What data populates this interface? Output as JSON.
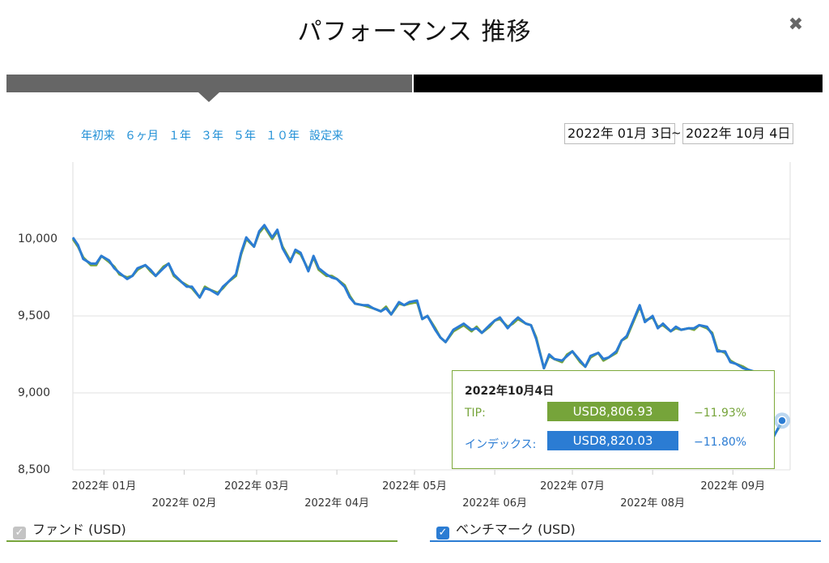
{
  "header": {
    "title": "パフォーマンス 推移",
    "close_symbol": "✖"
  },
  "periods": [
    "年初来",
    "６ヶ月",
    "１年",
    "３年",
    "５年",
    "１０年",
    "設定来"
  ],
  "date_range": {
    "from": "2022年 01月 3日",
    "separator": "~",
    "to": "2022年 10月 4日"
  },
  "tooltip": {
    "date": "2022年10月4日",
    "fund_label": "TIP:",
    "fund_value": "USD8,806.93",
    "fund_pct": "−11.93%",
    "index_label": "インデックス:",
    "index_value": "USD8,820.03",
    "index_pct": "−11.80%"
  },
  "legend": {
    "fund": "ファンド (USD)",
    "benchmark": "ベンチマーク (USD)"
  },
  "colors": {
    "fund": "#76a43a",
    "benchmark": "#2b7cd3",
    "link": "#1f8fd6"
  },
  "chart_data": {
    "type": "line",
    "ylim": [
      8500,
      10500
    ],
    "y_ticks": [
      8500,
      9000,
      9500,
      10000
    ],
    "y_tick_labels": [
      "8,500",
      "9,000",
      "9,500",
      "10,000"
    ],
    "x_tick_labels": [
      {
        "label": "2022年 01月",
        "date": "2022-01-15"
      },
      {
        "label": "2022年 02月",
        "date": "2022-02-15"
      },
      {
        "label": "2022年 03月",
        "date": "2022-03-15"
      },
      {
        "label": "2022年 04月",
        "date": "2022-04-15"
      },
      {
        "label": "2022年 05月",
        "date": "2022-05-15"
      },
      {
        "label": "2022年 06月",
        "date": "2022-06-15"
      },
      {
        "label": "2022年 07月",
        "date": "2022-07-15"
      },
      {
        "label": "2022年 08月",
        "date": "2022-08-15"
      },
      {
        "label": "2022年 09月",
        "date": "2022-09-15"
      }
    ],
    "series": [
      {
        "name": "ファンド (USD)",
        "points": [
          [
            "2022-01-03",
            10000
          ],
          [
            "2022-01-05",
            9950
          ],
          [
            "2022-01-07",
            9880
          ],
          [
            "2022-01-10",
            9830
          ],
          [
            "2022-01-12",
            9830
          ],
          [
            "2022-01-14",
            9890
          ],
          [
            "2022-01-17",
            9850
          ],
          [
            "2022-01-19",
            9820
          ],
          [
            "2022-01-21",
            9770
          ],
          [
            "2022-01-24",
            9750
          ],
          [
            "2022-01-26",
            9760
          ],
          [
            "2022-01-28",
            9800
          ],
          [
            "2022-01-31",
            9830
          ],
          [
            "2022-02-02",
            9790
          ],
          [
            "2022-02-04",
            9760
          ],
          [
            "2022-02-07",
            9820
          ],
          [
            "2022-02-09",
            9840
          ],
          [
            "2022-02-11",
            9760
          ],
          [
            "2022-02-14",
            9720
          ],
          [
            "2022-02-16",
            9700
          ],
          [
            "2022-02-18",
            9680
          ],
          [
            "2022-02-21",
            9620
          ],
          [
            "2022-02-23",
            9690
          ],
          [
            "2022-02-25",
            9670
          ],
          [
            "2022-02-28",
            9650
          ],
          [
            "2022-03-02",
            9680
          ],
          [
            "2022-03-04",
            9720
          ],
          [
            "2022-03-07",
            9760
          ],
          [
            "2022-03-09",
            9900
          ],
          [
            "2022-03-11",
            10000
          ],
          [
            "2022-03-14",
            9950
          ],
          [
            "2022-03-16",
            10040
          ],
          [
            "2022-03-18",
            10080
          ],
          [
            "2022-03-21",
            10000
          ],
          [
            "2022-03-23",
            10050
          ],
          [
            "2022-03-25",
            9950
          ],
          [
            "2022-03-28",
            9860
          ],
          [
            "2022-03-30",
            9920
          ],
          [
            "2022-04-01",
            9900
          ],
          [
            "2022-04-04",
            9800
          ],
          [
            "2022-04-06",
            9880
          ],
          [
            "2022-04-08",
            9800
          ],
          [
            "2022-04-11",
            9760
          ],
          [
            "2022-04-13",
            9760
          ],
          [
            "2022-04-15",
            9740
          ],
          [
            "2022-04-18",
            9700
          ],
          [
            "2022-04-20",
            9630
          ],
          [
            "2022-04-22",
            9580
          ],
          [
            "2022-04-25",
            9570
          ],
          [
            "2022-04-27",
            9560
          ],
          [
            "2022-04-29",
            9550
          ],
          [
            "2022-05-02",
            9530
          ],
          [
            "2022-05-04",
            9560
          ],
          [
            "2022-05-06",
            9510
          ],
          [
            "2022-05-09",
            9580
          ],
          [
            "2022-05-11",
            9570
          ],
          [
            "2022-05-13",
            9580
          ],
          [
            "2022-05-16",
            9590
          ],
          [
            "2022-05-18",
            9480
          ],
          [
            "2022-05-20",
            9500
          ],
          [
            "2022-05-23",
            9420
          ],
          [
            "2022-05-25",
            9360
          ],
          [
            "2022-05-27",
            9330
          ],
          [
            "2022-05-30",
            9400
          ],
          [
            "2022-06-01",
            9420
          ],
          [
            "2022-06-03",
            9440
          ],
          [
            "2022-06-06",
            9400
          ],
          [
            "2022-06-08",
            9430
          ],
          [
            "2022-06-10",
            9390
          ],
          [
            "2022-06-13",
            9430
          ],
          [
            "2022-06-15",
            9470
          ],
          [
            "2022-06-17",
            9480
          ],
          [
            "2022-06-20",
            9430
          ],
          [
            "2022-06-22",
            9450
          ],
          [
            "2022-06-24",
            9480
          ],
          [
            "2022-06-27",
            9450
          ],
          [
            "2022-06-29",
            9440
          ],
          [
            "2022-07-01",
            9360
          ],
          [
            "2022-07-04",
            9160
          ],
          [
            "2022-07-06",
            9240
          ],
          [
            "2022-07-08",
            9220
          ],
          [
            "2022-07-11",
            9200
          ],
          [
            "2022-07-13",
            9250
          ],
          [
            "2022-07-15",
            9270
          ],
          [
            "2022-07-18",
            9200
          ],
          [
            "2022-07-20",
            9170
          ],
          [
            "2022-07-22",
            9230
          ],
          [
            "2022-07-25",
            9260
          ],
          [
            "2022-07-27",
            9210
          ],
          [
            "2022-07-29",
            9230
          ],
          [
            "2022-08-01",
            9260
          ],
          [
            "2022-08-03",
            9340
          ],
          [
            "2022-08-05",
            9360
          ],
          [
            "2022-08-08",
            9480
          ],
          [
            "2022-08-10",
            9560
          ],
          [
            "2022-08-12",
            9470
          ],
          [
            "2022-08-15",
            9490
          ],
          [
            "2022-08-17",
            9430
          ],
          [
            "2022-08-19",
            9440
          ],
          [
            "2022-08-22",
            9400
          ],
          [
            "2022-08-24",
            9420
          ],
          [
            "2022-08-26",
            9410
          ],
          [
            "2022-08-29",
            9420
          ],
          [
            "2022-08-31",
            9410
          ],
          [
            "2022-09-02",
            9440
          ],
          [
            "2022-09-05",
            9420
          ],
          [
            "2022-09-07",
            9390
          ],
          [
            "2022-09-09",
            9280
          ],
          [
            "2022-09-12",
            9260
          ],
          [
            "2022-09-14",
            9210
          ],
          [
            "2022-09-16",
            9190
          ],
          [
            "2022-09-19",
            9170
          ],
          [
            "2022-09-21",
            9150
          ],
          [
            "2022-09-23",
            9130
          ],
          [
            "2022-09-26",
            8760
          ],
          [
            "2022-09-28",
            8730
          ],
          [
            "2022-09-30",
            8700
          ],
          [
            "2022-10-04",
            8807
          ]
        ]
      },
      {
        "name": "ベンチマーク (USD)",
        "points": [
          [
            "2022-01-03",
            10010
          ],
          [
            "2022-01-05",
            9960
          ],
          [
            "2022-01-07",
            9870
          ],
          [
            "2022-01-10",
            9840
          ],
          [
            "2022-01-12",
            9840
          ],
          [
            "2022-01-14",
            9890
          ],
          [
            "2022-01-17",
            9860
          ],
          [
            "2022-01-19",
            9810
          ],
          [
            "2022-01-21",
            9780
          ],
          [
            "2022-01-24",
            9740
          ],
          [
            "2022-01-26",
            9760
          ],
          [
            "2022-01-28",
            9810
          ],
          [
            "2022-01-31",
            9830
          ],
          [
            "2022-02-02",
            9800
          ],
          [
            "2022-02-04",
            9760
          ],
          [
            "2022-02-07",
            9810
          ],
          [
            "2022-02-09",
            9840
          ],
          [
            "2022-02-11",
            9770
          ],
          [
            "2022-02-14",
            9720
          ],
          [
            "2022-02-16",
            9690
          ],
          [
            "2022-02-18",
            9690
          ],
          [
            "2022-02-21",
            9620
          ],
          [
            "2022-02-23",
            9680
          ],
          [
            "2022-02-25",
            9670
          ],
          [
            "2022-02-28",
            9640
          ],
          [
            "2022-03-02",
            9690
          ],
          [
            "2022-03-04",
            9720
          ],
          [
            "2022-03-07",
            9770
          ],
          [
            "2022-03-09",
            9910
          ],
          [
            "2022-03-11",
            10010
          ],
          [
            "2022-03-14",
            9950
          ],
          [
            "2022-03-16",
            10050
          ],
          [
            "2022-03-18",
            10090
          ],
          [
            "2022-03-21",
            10010
          ],
          [
            "2022-03-23",
            10060
          ],
          [
            "2022-03-25",
            9940
          ],
          [
            "2022-03-28",
            9850
          ],
          [
            "2022-03-30",
            9930
          ],
          [
            "2022-04-01",
            9910
          ],
          [
            "2022-04-04",
            9790
          ],
          [
            "2022-04-06",
            9890
          ],
          [
            "2022-04-08",
            9810
          ],
          [
            "2022-04-11",
            9770
          ],
          [
            "2022-04-13",
            9750
          ],
          [
            "2022-04-15",
            9740
          ],
          [
            "2022-04-18",
            9690
          ],
          [
            "2022-04-20",
            9620
          ],
          [
            "2022-04-22",
            9580
          ],
          [
            "2022-04-25",
            9570
          ],
          [
            "2022-04-27",
            9570
          ],
          [
            "2022-04-29",
            9550
          ],
          [
            "2022-05-02",
            9530
          ],
          [
            "2022-05-04",
            9550
          ],
          [
            "2022-05-06",
            9510
          ],
          [
            "2022-05-09",
            9590
          ],
          [
            "2022-05-11",
            9570
          ],
          [
            "2022-05-13",
            9590
          ],
          [
            "2022-05-16",
            9600
          ],
          [
            "2022-05-18",
            9480
          ],
          [
            "2022-05-20",
            9500
          ],
          [
            "2022-05-23",
            9410
          ],
          [
            "2022-05-25",
            9360
          ],
          [
            "2022-05-27",
            9330
          ],
          [
            "2022-05-30",
            9410
          ],
          [
            "2022-06-01",
            9430
          ],
          [
            "2022-06-03",
            9450
          ],
          [
            "2022-06-06",
            9410
          ],
          [
            "2022-06-08",
            9420
          ],
          [
            "2022-06-10",
            9390
          ],
          [
            "2022-06-13",
            9440
          ],
          [
            "2022-06-15",
            9470
          ],
          [
            "2022-06-17",
            9490
          ],
          [
            "2022-06-20",
            9420
          ],
          [
            "2022-06-22",
            9460
          ],
          [
            "2022-06-24",
            9490
          ],
          [
            "2022-06-27",
            9450
          ],
          [
            "2022-06-29",
            9440
          ],
          [
            "2022-07-01",
            9350
          ],
          [
            "2022-07-04",
            9160
          ],
          [
            "2022-07-06",
            9250
          ],
          [
            "2022-07-08",
            9220
          ],
          [
            "2022-07-11",
            9210
          ],
          [
            "2022-07-13",
            9240
          ],
          [
            "2022-07-15",
            9270
          ],
          [
            "2022-07-18",
            9210
          ],
          [
            "2022-07-20",
            9170
          ],
          [
            "2022-07-22",
            9240
          ],
          [
            "2022-07-25",
            9260
          ],
          [
            "2022-07-27",
            9220
          ],
          [
            "2022-07-29",
            9230
          ],
          [
            "2022-08-01",
            9270
          ],
          [
            "2022-08-03",
            9340
          ],
          [
            "2022-08-05",
            9370
          ],
          [
            "2022-08-08",
            9490
          ],
          [
            "2022-08-10",
            9570
          ],
          [
            "2022-08-12",
            9460
          ],
          [
            "2022-08-15",
            9500
          ],
          [
            "2022-08-17",
            9420
          ],
          [
            "2022-08-19",
            9450
          ],
          [
            "2022-08-22",
            9400
          ],
          [
            "2022-08-24",
            9430
          ],
          [
            "2022-08-26",
            9410
          ],
          [
            "2022-08-29",
            9420
          ],
          [
            "2022-08-31",
            9420
          ],
          [
            "2022-09-02",
            9440
          ],
          [
            "2022-09-05",
            9430
          ],
          [
            "2022-09-07",
            9380
          ],
          [
            "2022-09-09",
            9270
          ],
          [
            "2022-09-12",
            9270
          ],
          [
            "2022-09-14",
            9200
          ],
          [
            "2022-09-16",
            9190
          ],
          [
            "2022-09-19",
            9160
          ],
          [
            "2022-09-21",
            9150
          ],
          [
            "2022-09-23",
            9140
          ],
          [
            "2022-09-26",
            8770
          ],
          [
            "2022-09-28",
            8720
          ],
          [
            "2022-09-30",
            8690
          ],
          [
            "2022-10-04",
            8820
          ]
        ]
      }
    ]
  }
}
